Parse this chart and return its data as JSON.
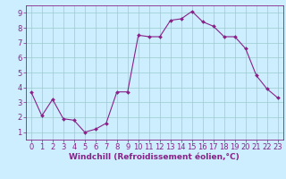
{
  "x": [
    0,
    1,
    2,
    3,
    4,
    5,
    6,
    7,
    8,
    9,
    10,
    11,
    12,
    13,
    14,
    15,
    16,
    17,
    18,
    19,
    20,
    21,
    22,
    23
  ],
  "y": [
    3.7,
    2.1,
    3.2,
    1.9,
    1.8,
    1.0,
    1.2,
    1.6,
    3.7,
    3.7,
    7.5,
    7.4,
    7.4,
    8.5,
    8.6,
    9.1,
    8.4,
    8.1,
    7.4,
    7.4,
    6.6,
    4.8,
    3.9,
    3.3
  ],
  "line_color": "#882288",
  "marker": "D",
  "marker_size": 2.0,
  "background_color": "#cceeff",
  "grid_color": "#99cccc",
  "xlabel": "Windchill (Refroidissement éolien,°C)",
  "xlim": [
    -0.5,
    23.5
  ],
  "ylim": [
    0.5,
    9.5
  ],
  "yticks": [
    1,
    2,
    3,
    4,
    5,
    6,
    7,
    8,
    9
  ],
  "xticks": [
    0,
    1,
    2,
    3,
    4,
    5,
    6,
    7,
    8,
    9,
    10,
    11,
    12,
    13,
    14,
    15,
    16,
    17,
    18,
    19,
    20,
    21,
    22,
    23
  ],
  "tick_color": "#882288",
  "label_fontsize": 6.5,
  "tick_fontsize": 6.0,
  "linewidth": 0.8
}
